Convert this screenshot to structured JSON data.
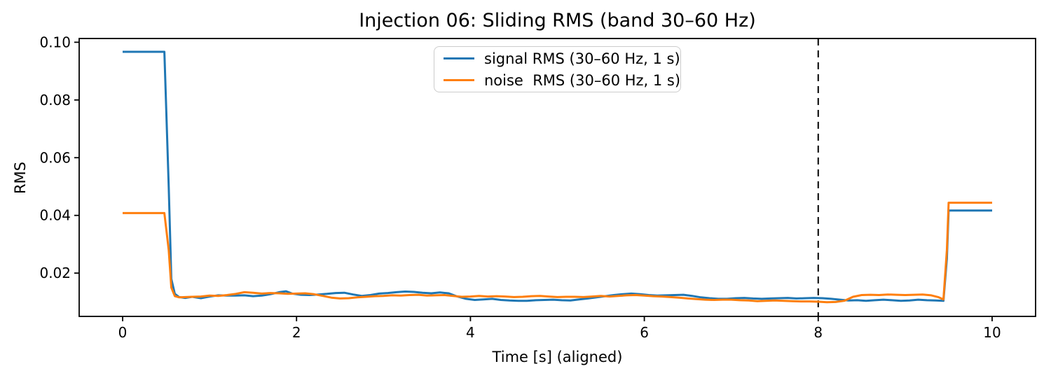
{
  "chart_data": {
    "type": "line",
    "title": "Injection 06: Sliding RMS (band 30–60 Hz)",
    "xlabel": "Time [s] (aligned)",
    "ylabel": "RMS",
    "xlim": [
      -0.5,
      10.5
    ],
    "ylim": [
      0.005,
      0.1013
    ],
    "xticks": [
      0,
      2,
      4,
      6,
      8,
      10
    ],
    "xtick_labels": [
      "0",
      "2",
      "4",
      "6",
      "8",
      "10"
    ],
    "yticks": [
      0.02,
      0.04,
      0.06,
      0.08,
      0.1
    ],
    "ytick_labels": [
      "0.02",
      "0.04",
      "0.06",
      "0.08",
      "0.10"
    ],
    "grid": false,
    "background": "#ffffff",
    "axis_color": "#000000",
    "vline": {
      "x": 8,
      "color": "#000000",
      "style": "dashed"
    },
    "legend": {
      "location": "upper center",
      "border_color": "#cccccc",
      "background": "#ffffff"
    },
    "series": [
      {
        "name": "signal RMS (30–60 Hz, 1 s)",
        "color": "#1f77b4",
        "points": [
          [
            0.0,
            0.0967
          ],
          [
            0.48,
            0.0967
          ],
          [
            0.53,
            0.05
          ],
          [
            0.56,
            0.018
          ],
          [
            0.6,
            0.0128
          ],
          [
            0.65,
            0.0117
          ],
          [
            0.72,
            0.0114
          ],
          [
            0.8,
            0.0118
          ],
          [
            0.9,
            0.0113
          ],
          [
            1.0,
            0.0119
          ],
          [
            1.1,
            0.0123
          ],
          [
            1.2,
            0.0122
          ],
          [
            1.3,
            0.0122
          ],
          [
            1.4,
            0.0123
          ],
          [
            1.5,
            0.012
          ],
          [
            1.6,
            0.0122
          ],
          [
            1.7,
            0.0127
          ],
          [
            1.8,
            0.0134
          ],
          [
            1.88,
            0.0137
          ],
          [
            1.95,
            0.0129
          ],
          [
            2.05,
            0.0125
          ],
          [
            2.15,
            0.0124
          ],
          [
            2.25,
            0.0126
          ],
          [
            2.35,
            0.0128
          ],
          [
            2.45,
            0.0131
          ],
          [
            2.55,
            0.0132
          ],
          [
            2.65,
            0.0126
          ],
          [
            2.75,
            0.0121
          ],
          [
            2.85,
            0.0124
          ],
          [
            2.95,
            0.0129
          ],
          [
            3.05,
            0.0131
          ],
          [
            3.15,
            0.0134
          ],
          [
            3.25,
            0.0136
          ],
          [
            3.35,
            0.0135
          ],
          [
            3.45,
            0.0132
          ],
          [
            3.55,
            0.013
          ],
          [
            3.65,
            0.0133
          ],
          [
            3.75,
            0.013
          ],
          [
            3.85,
            0.0119
          ],
          [
            3.95,
            0.0111
          ],
          [
            4.05,
            0.0107
          ],
          [
            4.15,
            0.0109
          ],
          [
            4.25,
            0.0111
          ],
          [
            4.35,
            0.0107
          ],
          [
            4.45,
            0.0105
          ],
          [
            4.55,
            0.0104
          ],
          [
            4.65,
            0.0104
          ],
          [
            4.75,
            0.0106
          ],
          [
            4.85,
            0.0107
          ],
          [
            4.95,
            0.0108
          ],
          [
            5.05,
            0.0106
          ],
          [
            5.15,
            0.0105
          ],
          [
            5.25,
            0.0109
          ],
          [
            5.35,
            0.0112
          ],
          [
            5.45,
            0.0116
          ],
          [
            5.55,
            0.012
          ],
          [
            5.65,
            0.0124
          ],
          [
            5.75,
            0.0127
          ],
          [
            5.85,
            0.0129
          ],
          [
            5.95,
            0.0127
          ],
          [
            6.05,
            0.0124
          ],
          [
            6.15,
            0.0122
          ],
          [
            6.25,
            0.0123
          ],
          [
            6.35,
            0.0124
          ],
          [
            6.45,
            0.0125
          ],
          [
            6.55,
            0.0121
          ],
          [
            6.65,
            0.0116
          ],
          [
            6.75,
            0.0113
          ],
          [
            6.85,
            0.0111
          ],
          [
            6.95,
            0.0111
          ],
          [
            7.05,
            0.0113
          ],
          [
            7.15,
            0.0114
          ],
          [
            7.25,
            0.0112
          ],
          [
            7.35,
            0.0111
          ],
          [
            7.45,
            0.0112
          ],
          [
            7.55,
            0.0113
          ],
          [
            7.65,
            0.0114
          ],
          [
            7.75,
            0.0112
          ],
          [
            7.85,
            0.0113
          ],
          [
            7.95,
            0.0114
          ],
          [
            8.05,
            0.0113
          ],
          [
            8.15,
            0.0111
          ],
          [
            8.25,
            0.0108
          ],
          [
            8.35,
            0.0105
          ],
          [
            8.45,
            0.0106
          ],
          [
            8.55,
            0.0104
          ],
          [
            8.65,
            0.0106
          ],
          [
            8.75,
            0.0108
          ],
          [
            8.85,
            0.0106
          ],
          [
            8.95,
            0.0104
          ],
          [
            9.05,
            0.0105
          ],
          [
            9.15,
            0.0108
          ],
          [
            9.25,
            0.0106
          ],
          [
            9.35,
            0.0105
          ],
          [
            9.44,
            0.0104
          ],
          [
            9.48,
            0.025
          ],
          [
            9.5,
            0.0417
          ],
          [
            10.0,
            0.0417
          ]
        ]
      },
      {
        "name": "noise  RMS (30–60 Hz, 1 s)",
        "color": "#ff7f0e",
        "points": [
          [
            0.0,
            0.0408
          ],
          [
            0.48,
            0.0408
          ],
          [
            0.53,
            0.028
          ],
          [
            0.56,
            0.015
          ],
          [
            0.6,
            0.012
          ],
          [
            0.65,
            0.0116
          ],
          [
            0.72,
            0.0117
          ],
          [
            0.8,
            0.0118
          ],
          [
            0.9,
            0.0119
          ],
          [
            1.0,
            0.0122
          ],
          [
            1.1,
            0.0121
          ],
          [
            1.2,
            0.0124
          ],
          [
            1.3,
            0.0128
          ],
          [
            1.4,
            0.0134
          ],
          [
            1.5,
            0.0132
          ],
          [
            1.6,
            0.0129
          ],
          [
            1.7,
            0.0131
          ],
          [
            1.8,
            0.013
          ],
          [
            1.9,
            0.0128
          ],
          [
            2.0,
            0.0129
          ],
          [
            2.1,
            0.013
          ],
          [
            2.2,
            0.0127
          ],
          [
            2.3,
            0.0121
          ],
          [
            2.4,
            0.0115
          ],
          [
            2.5,
            0.0112
          ],
          [
            2.6,
            0.0113
          ],
          [
            2.7,
            0.0116
          ],
          [
            2.8,
            0.0118
          ],
          [
            2.9,
            0.012
          ],
          [
            3.0,
            0.0121
          ],
          [
            3.1,
            0.0123
          ],
          [
            3.2,
            0.0122
          ],
          [
            3.3,
            0.0124
          ],
          [
            3.4,
            0.0125
          ],
          [
            3.5,
            0.0122
          ],
          [
            3.6,
            0.0123
          ],
          [
            3.7,
            0.0124
          ],
          [
            3.8,
            0.0121
          ],
          [
            3.9,
            0.0118
          ],
          [
            4.0,
            0.0119
          ],
          [
            4.1,
            0.0121
          ],
          [
            4.2,
            0.0119
          ],
          [
            4.3,
            0.012
          ],
          [
            4.4,
            0.0119
          ],
          [
            4.5,
            0.0117
          ],
          [
            4.6,
            0.0118
          ],
          [
            4.7,
            0.012
          ],
          [
            4.8,
            0.0121
          ],
          [
            4.9,
            0.0119
          ],
          [
            5.0,
            0.0117
          ],
          [
            5.1,
            0.0118
          ],
          [
            5.2,
            0.0118
          ],
          [
            5.3,
            0.0117
          ],
          [
            5.4,
            0.0119
          ],
          [
            5.5,
            0.0121
          ],
          [
            5.6,
            0.0119
          ],
          [
            5.7,
            0.0121
          ],
          [
            5.8,
            0.0123
          ],
          [
            5.9,
            0.0124
          ],
          [
            6.0,
            0.0122
          ],
          [
            6.1,
            0.012
          ],
          [
            6.2,
            0.0119
          ],
          [
            6.3,
            0.0117
          ],
          [
            6.4,
            0.0115
          ],
          [
            6.5,
            0.0112
          ],
          [
            6.6,
            0.011
          ],
          [
            6.7,
            0.0108
          ],
          [
            6.8,
            0.0107
          ],
          [
            6.9,
            0.0108
          ],
          [
            7.0,
            0.0108
          ],
          [
            7.1,
            0.0106
          ],
          [
            7.2,
            0.0105
          ],
          [
            7.3,
            0.0103
          ],
          [
            7.4,
            0.0104
          ],
          [
            7.5,
            0.0105
          ],
          [
            7.6,
            0.0104
          ],
          [
            7.7,
            0.0103
          ],
          [
            7.8,
            0.0102
          ],
          [
            7.9,
            0.0102
          ],
          [
            8.0,
            0.0101
          ],
          [
            8.1,
            0.0099
          ],
          [
            8.2,
            0.01
          ],
          [
            8.3,
            0.0104
          ],
          [
            8.4,
            0.0118
          ],
          [
            8.5,
            0.0124
          ],
          [
            8.6,
            0.0125
          ],
          [
            8.7,
            0.0124
          ],
          [
            8.8,
            0.0126
          ],
          [
            8.9,
            0.0125
          ],
          [
            9.0,
            0.0124
          ],
          [
            9.1,
            0.0125
          ],
          [
            9.2,
            0.0126
          ],
          [
            9.3,
            0.0123
          ],
          [
            9.38,
            0.0117
          ],
          [
            9.44,
            0.0109
          ],
          [
            9.48,
            0.028
          ],
          [
            9.5,
            0.0444
          ],
          [
            10.0,
            0.0444
          ]
        ]
      }
    ]
  }
}
